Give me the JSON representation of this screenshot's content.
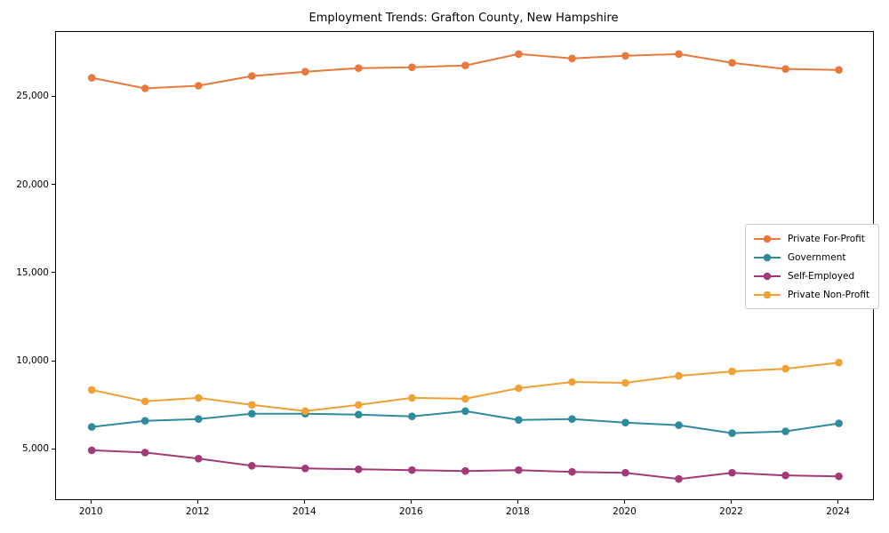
{
  "chart_data": {
    "type": "line",
    "title": "Employment Trends: Grafton County, New Hampshire",
    "xlabel": "",
    "ylabel": "",
    "x": [
      2010,
      2011,
      2012,
      2013,
      2014,
      2015,
      2016,
      2017,
      2018,
      2019,
      2020,
      2021,
      2022,
      2023,
      2024
    ],
    "series": [
      {
        "name": "Private For-Profit",
        "color": "#E8793D",
        "values": [
          26100,
          25500,
          25650,
          26200,
          26450,
          26650,
          26700,
          26800,
          27450,
          27200,
          27350,
          27450,
          26950,
          26600,
          26550
        ]
      },
      {
        "name": "Government",
        "color": "#2E8B9D",
        "values": [
          6300,
          6650,
          6750,
          7050,
          7050,
          7000,
          6900,
          7200,
          6700,
          6750,
          6550,
          6400,
          5950,
          6050,
          6500
        ]
      },
      {
        "name": "Self-Employed",
        "color": "#A33A78",
        "values": [
          4975,
          4850,
          4500,
          4100,
          3950,
          3900,
          3850,
          3800,
          3850,
          3750,
          3700,
          3350,
          3700,
          3550,
          3500
        ]
      },
      {
        "name": "Private Non-Profit",
        "color": "#F0A136",
        "values": [
          8400,
          7750,
          7950,
          7550,
          7200,
          7550,
          7950,
          7900,
          8500,
          8850,
          8800,
          9200,
          9450,
          9600,
          9950
        ]
      }
    ],
    "xlim": [
      2009.33,
      2024.64
    ],
    "ylim": [
      2200,
      28700
    ],
    "x_ticks": [
      2010,
      2012,
      2014,
      2016,
      2018,
      2020,
      2022,
      2024
    ],
    "y_ticks": [
      5000,
      10000,
      15000,
      20000,
      25000
    ],
    "y_tick_labels": [
      "5,000",
      "10,000",
      "15,000",
      "20,000",
      "25,000"
    ],
    "grid": false,
    "legend_position": "center-right",
    "marker": "circle"
  }
}
